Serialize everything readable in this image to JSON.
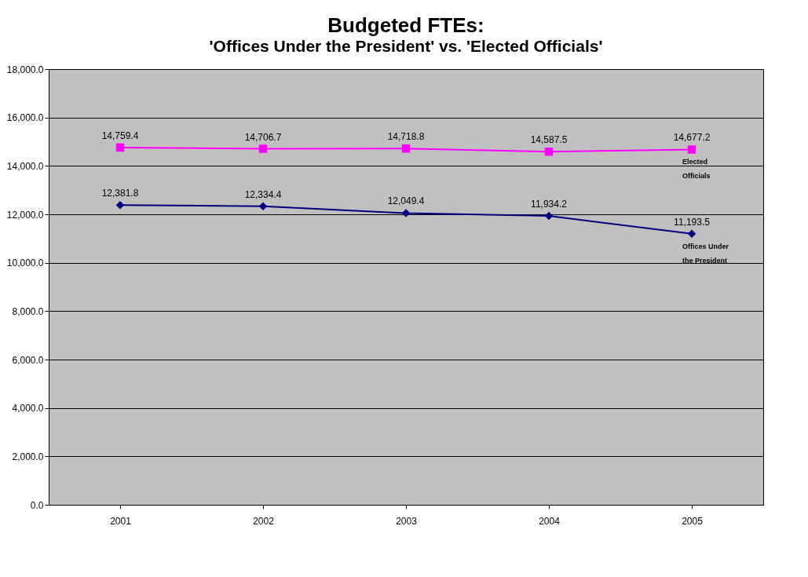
{
  "chart_data": {
    "type": "line",
    "title": "Budgeted FTEs:",
    "subtitle": "'Offices Under the President' vs. 'Elected Officials'",
    "categories": [
      "2001",
      "2002",
      "2003",
      "2004",
      "2005"
    ],
    "series": [
      {
        "name": "Elected Officials",
        "color": "#ff00ff",
        "marker": "square",
        "values": [
          14759.4,
          14706.7,
          14718.8,
          14587.5,
          14677.2
        ],
        "value_labels": [
          "14,759.4",
          "14,706.7",
          "14,718.8",
          "14,587.5",
          "14,677.2"
        ]
      },
      {
        "name": "Offices Under the President",
        "color": "#000080",
        "marker": "diamond",
        "values": [
          12381.8,
          12334.4,
          12049.4,
          11934.2,
          11193.5
        ],
        "value_labels": [
          "12,381.8",
          "12,334.4",
          "12,049.4",
          "11,934.2",
          "11,193.5"
        ]
      }
    ],
    "ylim": [
      0,
      18000
    ],
    "yticks": [
      {
        "value": 0,
        "label": "0.0"
      },
      {
        "value": 2000,
        "label": "2,000.0"
      },
      {
        "value": 4000,
        "label": "4,000.0"
      },
      {
        "value": 6000,
        "label": "6,000.0"
      },
      {
        "value": 8000,
        "label": "8,000.0"
      },
      {
        "value": 10000,
        "label": "10,000.0"
      },
      {
        "value": 12000,
        "label": "12,000.0"
      },
      {
        "value": 14000,
        "label": "14,000.0"
      },
      {
        "value": 16000,
        "label": "16,000.0"
      },
      {
        "value": 18000,
        "label": "18,000.0"
      }
    ],
    "grid": "y",
    "legend": false
  }
}
